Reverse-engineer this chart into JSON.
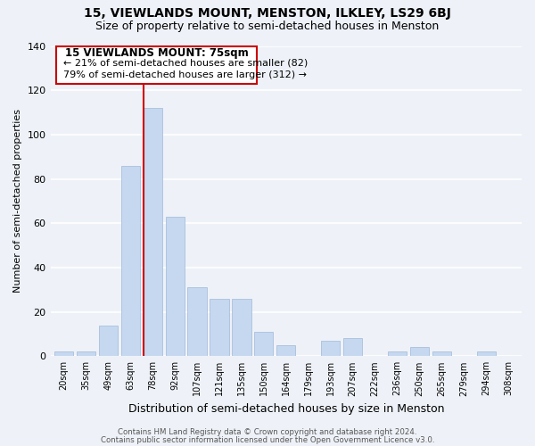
{
  "title": "15, VIEWLANDS MOUNT, MENSTON, ILKLEY, LS29 6BJ",
  "subtitle": "Size of property relative to semi-detached houses in Menston",
  "xlabel": "Distribution of semi-detached houses by size in Menston",
  "ylabel": "Number of semi-detached properties",
  "footer1": "Contains HM Land Registry data © Crown copyright and database right 2024.",
  "footer2": "Contains public sector information licensed under the Open Government Licence v3.0.",
  "categories": [
    "20sqm",
    "35sqm",
    "49sqm",
    "63sqm",
    "78sqm",
    "92sqm",
    "107sqm",
    "121sqm",
    "135sqm",
    "150sqm",
    "164sqm",
    "179sqm",
    "193sqm",
    "207sqm",
    "222sqm",
    "236sqm",
    "250sqm",
    "265sqm",
    "279sqm",
    "294sqm",
    "308sqm"
  ],
  "values": [
    2,
    2,
    14,
    86,
    112,
    63,
    31,
    26,
    26,
    11,
    5,
    0,
    7,
    8,
    0,
    2,
    4,
    2,
    0,
    2,
    0
  ],
  "bar_color": "#c5d8f0",
  "bar_edge_color": "#a0b8d8",
  "red_line_index": 4,
  "annotation_title": "15 VIEWLANDS MOUNT: 75sqm",
  "annotation_line1": "← 21% of semi-detached houses are smaller (82)",
  "annotation_line2": "79% of semi-detached houses are larger (312) →",
  "annotation_box_color": "#ffffff",
  "annotation_box_edge": "#cc0000",
  "ylim": [
    0,
    140
  ],
  "yticks": [
    0,
    20,
    40,
    60,
    80,
    100,
    120,
    140
  ],
  "background_color": "#eef2f8",
  "plot_background": "#eef2f8",
  "grid_color": "#ffffff",
  "title_fontsize": 10,
  "subtitle_fontsize": 9
}
